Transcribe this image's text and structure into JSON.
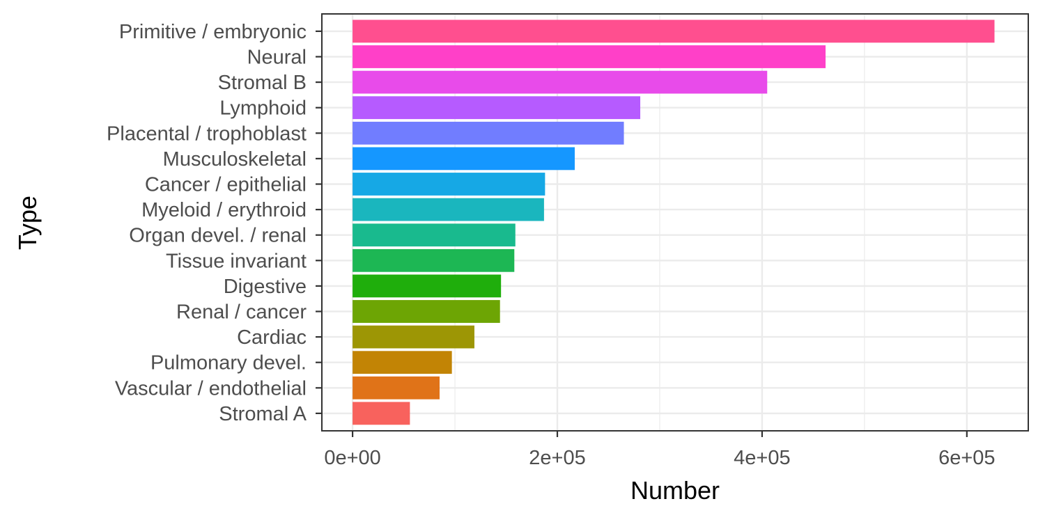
{
  "chart_data": {
    "type": "bar",
    "orientation": "horizontal",
    "title": "",
    "xlabel": "Number",
    "ylabel": "Type",
    "xlim": [
      -30000,
      660000
    ],
    "x_ticks": [
      {
        "value": 0,
        "label": "0e+00"
      },
      {
        "value": 200000,
        "label": "2e+05"
      },
      {
        "value": 400000,
        "label": "4e+05"
      },
      {
        "value": 600000,
        "label": "6e+05"
      }
    ],
    "x_minor_ticks": [
      100000,
      300000,
      500000
    ],
    "grid": true,
    "legend": "none",
    "bars": [
      {
        "category": "Primitive / embryonic",
        "value": 627000,
        "color": "#FF4F8F"
      },
      {
        "category": "Neural",
        "value": 462000,
        "color": "#FF40C8"
      },
      {
        "category": "Stromal B",
        "value": 405000,
        "color": "#E84BEA"
      },
      {
        "category": "Lymphoid",
        "value": 281000,
        "color": "#B65BFF"
      },
      {
        "category": "Placental / trophoblast",
        "value": 265000,
        "color": "#717DFF"
      },
      {
        "category": "Musculoskeletal",
        "value": 217000,
        "color": "#1597FF"
      },
      {
        "category": "Cancer / epithelial",
        "value": 188000,
        "color": "#16A8E5"
      },
      {
        "category": "Myeloid / erythroid",
        "value": 187000,
        "color": "#1AB6BE"
      },
      {
        "category": "Organ devel. / renal",
        "value": 159000,
        "color": "#19BA8E"
      },
      {
        "category": "Tissue invariant",
        "value": 158000,
        "color": "#1DB754"
      },
      {
        "category": "Digestive",
        "value": 145000,
        "color": "#1FAE0C"
      },
      {
        "category": "Renal / cancer",
        "value": 144000,
        "color": "#6DA504"
      },
      {
        "category": "Cardiac",
        "value": 119000,
        "color": "#9D9605"
      },
      {
        "category": "Pulmonary devel.",
        "value": 97000,
        "color": "#C28405"
      },
      {
        "category": "Vascular / endothelial",
        "value": 85000,
        "color": "#E07318"
      },
      {
        "category": "Stromal A",
        "value": 56000,
        "color": "#F8625D"
      }
    ]
  }
}
